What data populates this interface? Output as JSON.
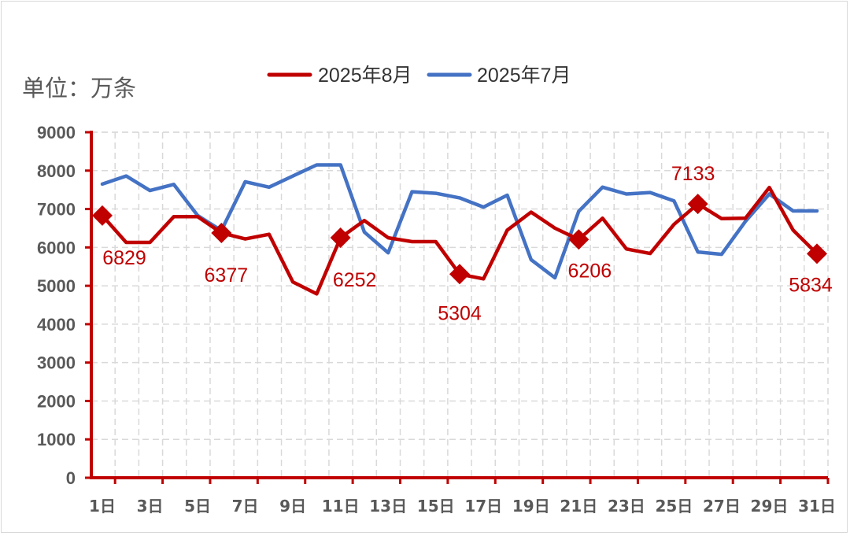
{
  "chart_data": {
    "type": "line",
    "unit_label": "单位：万条",
    "categories": [
      "1日",
      "2日",
      "3日",
      "4日",
      "5日",
      "6日",
      "7日",
      "8日",
      "9日",
      "10日",
      "11日",
      "12日",
      "13日",
      "14日",
      "15日",
      "16日",
      "17日",
      "18日",
      "19日",
      "20日",
      "21日",
      "22日",
      "23日",
      "24日",
      "25日",
      "26日",
      "27日",
      "28日",
      "29日",
      "30日",
      "31日"
    ],
    "x_tick_labels": [
      "1日",
      "3日",
      "5日",
      "7日",
      "9日",
      "11日",
      "13日",
      "15日",
      "17日",
      "19日",
      "21日",
      "23日",
      "25日",
      "27日",
      "29日",
      "31日"
    ],
    "ylim": [
      0,
      9000
    ],
    "y_ticks": [
      0,
      1000,
      2000,
      3000,
      4000,
      5000,
      6000,
      7000,
      8000,
      9000
    ],
    "grid": true,
    "legend_position": "top",
    "series": [
      {
        "name": "2025年8月",
        "color": "#c00000",
        "values": [
          6829,
          6130,
          6130,
          6800,
          6800,
          6377,
          6220,
          6340,
          5100,
          4790,
          6252,
          6700,
          6250,
          6150,
          6150,
          5304,
          5180,
          6450,
          6920,
          6500,
          6206,
          6760,
          5960,
          5840,
          6600,
          7133,
          6750,
          6760,
          7560,
          6450,
          5834
        ],
        "marker": "diamond",
        "labeled_points": [
          {
            "day": "1日",
            "value": 6829,
            "label": "6829"
          },
          {
            "day": "6日",
            "value": 6377,
            "label": "6377"
          },
          {
            "day": "11日",
            "value": 6252,
            "label": "6252"
          },
          {
            "day": "16日",
            "value": 5304,
            "label": "5304"
          },
          {
            "day": "21日",
            "value": 6206,
            "label": "6206"
          },
          {
            "day": "26日",
            "value": 7133,
            "label": "7133"
          },
          {
            "day": "31日",
            "value": 5834,
            "label": "5834"
          }
        ]
      },
      {
        "name": "2025年7月",
        "color": "#4472c4",
        "values": [
          7650,
          7860,
          7480,
          7640,
          6830,
          6440,
          7710,
          7570,
          7860,
          8150,
          8150,
          6400,
          5860,
          7450,
          7410,
          7290,
          7050,
          7360,
          5680,
          5210,
          6940,
          7570,
          7390,
          7430,
          7210,
          5880,
          5820,
          6680,
          7390,
          6950,
          6950
        ]
      }
    ]
  }
}
